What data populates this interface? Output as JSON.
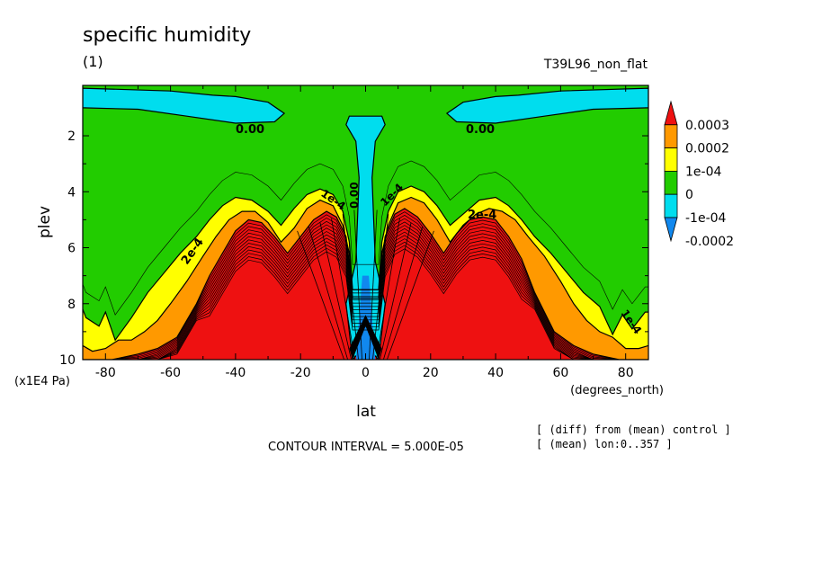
{
  "chart_data": {
    "type": "heatmap",
    "title": "specific humidity",
    "subtitle": "(1)",
    "run_label": "T39L96_non_flat",
    "xlabel": "lat",
    "x_units": "(degrees_north)",
    "ylabel": "plev",
    "y_units": "(x1E4 Pa)",
    "xlim": [
      -87,
      87
    ],
    "ylim": [
      10,
      0.2
    ],
    "x_ticks": [
      -80,
      -60,
      -40,
      -20,
      0,
      20,
      40,
      60,
      80
    ],
    "x_tick_labels": [
      "-80",
      "-60",
      "-40",
      "-20",
      "0",
      "20",
      "40",
      "60",
      "80"
    ],
    "y_ticks": [
      2,
      4,
      6,
      8,
      10
    ],
    "y_tick_labels": [
      "2",
      "4",
      "6",
      "8",
      "10"
    ],
    "contour_interval_text": "CONTOUR INTERVAL = 5.000E-05",
    "notes": [
      "[ (diff) from (mean) control ]",
      "[ (mean) lon:0..357 ]"
    ],
    "contour_labels": [
      "0.00",
      "0.00",
      "2e-4",
      "2e-4",
      "1e-4",
      "1e-4",
      "1e-4",
      "0.00"
    ],
    "legend": {
      "placement": "right",
      "levels": [
        "0.0003",
        "0.0002",
        "1e-04",
        "0",
        "-1e-04",
        "-0.0002"
      ],
      "colors": [
        "#ee1111",
        "#ff9900",
        "#ffff00",
        "#22cc00",
        "#00ddee",
        "#1188ee"
      ]
    },
    "bands": [
      {
        "value_range": "> 0.0003",
        "color": "#ee1111"
      },
      {
        "value_range": "0.0002 to 0.0003",
        "color": "#ff9900"
      },
      {
        "value_range": "1e-04 to 0.0002",
        "color": "#ffff00"
      },
      {
        "value_range": "0 to 1e-04",
        "color": "#22cc00"
      },
      {
        "value_range": "-1e-04 to 0",
        "color": "#00ddee"
      },
      {
        "value_range": "< -1e-04",
        "color": "#1188ee"
      }
    ],
    "regions": {
      "band_zero_top_left": {
        "lat": [
          -87,
          -60,
          -47,
          -40,
          -30,
          -25,
          -28,
          -40,
          -55,
          -70,
          -87
        ],
        "plev": [
          0.3,
          0.4,
          0.55,
          0.6,
          0.8,
          1.2,
          1.5,
          1.55,
          1.3,
          1.05,
          1.0
        ]
      },
      "band_zero_top_right": {
        "lat": [
          87,
          60,
          47,
          40,
          30,
          25,
          28,
          40,
          55,
          70,
          87
        ],
        "plev": [
          0.3,
          0.4,
          0.55,
          0.6,
          0.8,
          1.2,
          1.5,
          1.55,
          1.3,
          1.05,
          1.0
        ]
      },
      "band_zero_center": {
        "lat": [
          -5,
          -6,
          -3,
          -2,
          -2.5,
          -3,
          -6,
          -4,
          0,
          4,
          6,
          3,
          2.5,
          2,
          3,
          6,
          5
        ],
        "plev": [
          1.3,
          1.6,
          2.2,
          3.5,
          5.0,
          6.5,
          8.0,
          10,
          9.5,
          10,
          8.0,
          6.5,
          5.0,
          3.5,
          2.2,
          1.6,
          1.3
        ]
      },
      "band_yellow": {
        "lat": [
          -87,
          -86,
          -82,
          -80,
          -77,
          -72,
          -67,
          -62,
          -57,
          -52,
          -48,
          -44,
          -40,
          -35,
          -30,
          -26,
          -22,
          -18,
          -14,
          -10,
          -7,
          -5,
          -4,
          4,
          5,
          7,
          10,
          14,
          18,
          22,
          26,
          30,
          35,
          40,
          44,
          48,
          52,
          57,
          62,
          67,
          72,
          76,
          79,
          82,
          86,
          87
        ],
        "plev": [
          8.2,
          8.5,
          8.8,
          8.3,
          9.3,
          8.5,
          7.6,
          6.9,
          6.2,
          5.6,
          5.0,
          4.5,
          4.2,
          4.3,
          4.7,
          5.2,
          4.6,
          4.1,
          3.9,
          4.1,
          4.7,
          5.8,
          7.5,
          7.5,
          5.8,
          4.7,
          4.0,
          3.8,
          4.0,
          4.5,
          5.2,
          4.8,
          4.3,
          4.2,
          4.5,
          5.0,
          5.6,
          6.2,
          6.9,
          7.6,
          8.1,
          9.1,
          8.4,
          8.9,
          8.3,
          8.3
        ]
      },
      "band_orange": {
        "lat": [
          -87,
          -84,
          -80,
          -76,
          -72,
          -68,
          -64,
          -60,
          -55,
          -50,
          -46,
          -42,
          -38,
          -34,
          -30,
          -26,
          -22,
          -18,
          -14,
          -10,
          -7,
          -5,
          -4,
          4,
          5,
          7,
          10,
          14,
          18,
          22,
          26,
          30,
          34,
          38,
          42,
          46,
          50,
          55,
          60,
          64,
          68,
          72,
          76,
          80,
          84,
          87
        ],
        "plev": [
          9.5,
          9.7,
          9.6,
          9.3,
          9.3,
          9.0,
          8.6,
          8.0,
          7.2,
          6.3,
          5.6,
          5.0,
          4.7,
          4.7,
          5.1,
          5.8,
          5.3,
          4.6,
          4.3,
          4.5,
          5.2,
          6.2,
          7.8,
          7.8,
          6.2,
          5.2,
          4.4,
          4.2,
          4.4,
          5.0,
          5.8,
          5.2,
          4.8,
          4.6,
          4.7,
          5.0,
          5.6,
          6.3,
          7.2,
          8.0,
          8.6,
          9.0,
          9.2,
          9.6,
          9.6,
          9.5
        ]
      },
      "band_red": {
        "lat": [
          -87,
          -78,
          -70,
          -64,
          -58,
          -52,
          -48,
          -44,
          -40,
          -36,
          -32,
          -28,
          -24,
          -20,
          -16,
          -12,
          -9,
          -6,
          -4,
          4,
          6,
          9,
          12,
          16,
          20,
          24,
          28,
          32,
          36,
          40,
          44,
          48,
          52,
          58,
          64,
          70,
          78,
          87
        ],
        "plev": [
          10,
          10,
          9.8,
          9.6,
          9.2,
          8.0,
          7.0,
          6.2,
          5.4,
          5.0,
          5.1,
          5.6,
          6.2,
          5.6,
          5.0,
          4.7,
          4.9,
          5.6,
          7.5,
          7.5,
          5.6,
          4.8,
          4.6,
          4.9,
          5.5,
          6.2,
          5.5,
          5.0,
          4.9,
          5.0,
          5.6,
          6.4,
          7.6,
          9.0,
          9.5,
          9.8,
          10,
          10
        ]
      },
      "band_blue_center": {
        "lat": [
          -3,
          -1,
          1,
          3,
          2,
          -2
        ],
        "plev": [
          10,
          7.0,
          7.0,
          10,
          10,
          10
        ]
      },
      "band_black_center": {
        "lat": [
          -4,
          0,
          4,
          5,
          0,
          -5
        ],
        "plev": [
          10,
          8.8,
          10,
          9.6,
          8.4,
          9.6
        ]
      }
    }
  }
}
